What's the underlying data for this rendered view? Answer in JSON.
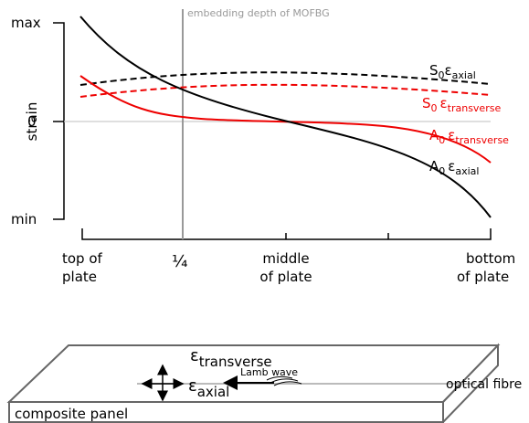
{
  "plot": {
    "y_label": "strain",
    "y_ticks": [
      "max",
      "0",
      "min"
    ],
    "x_ticks": [
      [
        "top of",
        "plate"
      ],
      [
        "¼"
      ],
      [
        "middle",
        "of plate"
      ],
      [
        "bottom",
        "of plate"
      ]
    ],
    "annotation": "embedding depth of MOFBG",
    "curves": [
      {
        "mode": "S",
        "sub": "0",
        "symbol": "ε",
        "component": "axial"
      },
      {
        "mode": "S",
        "sub": "0",
        "symbol": "ε",
        "component": "transverse"
      },
      {
        "mode": "A",
        "sub": "0",
        "symbol": "ε",
        "component": "transverse"
      },
      {
        "mode": "A",
        "sub": "0",
        "symbol": "ε",
        "component": "axial"
      }
    ]
  },
  "panel": {
    "label": "composite panel",
    "fibre": "optical fibre",
    "wave": "Lamb wave",
    "transverse": {
      "symbol": "ε",
      "component": "transverse"
    },
    "axial": {
      "symbol": "ε",
      "component": "axial"
    }
  }
}
